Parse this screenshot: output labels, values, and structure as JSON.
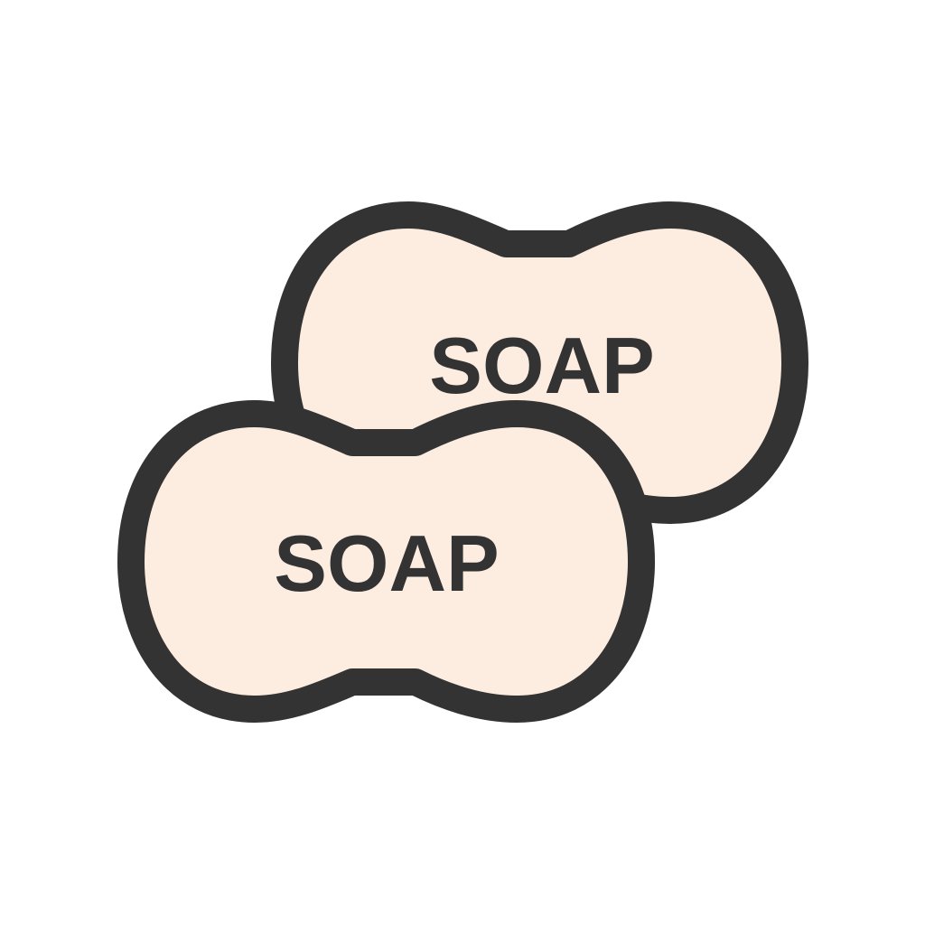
{
  "icon": {
    "name": "soap-bars-icon",
    "colors": {
      "fill": "#FDEDE1",
      "outline": "#333333",
      "text": "#333333",
      "background": "#FFFFFF"
    },
    "bars": [
      {
        "label": "SOAP"
      },
      {
        "label": "SOAP"
      }
    ]
  }
}
